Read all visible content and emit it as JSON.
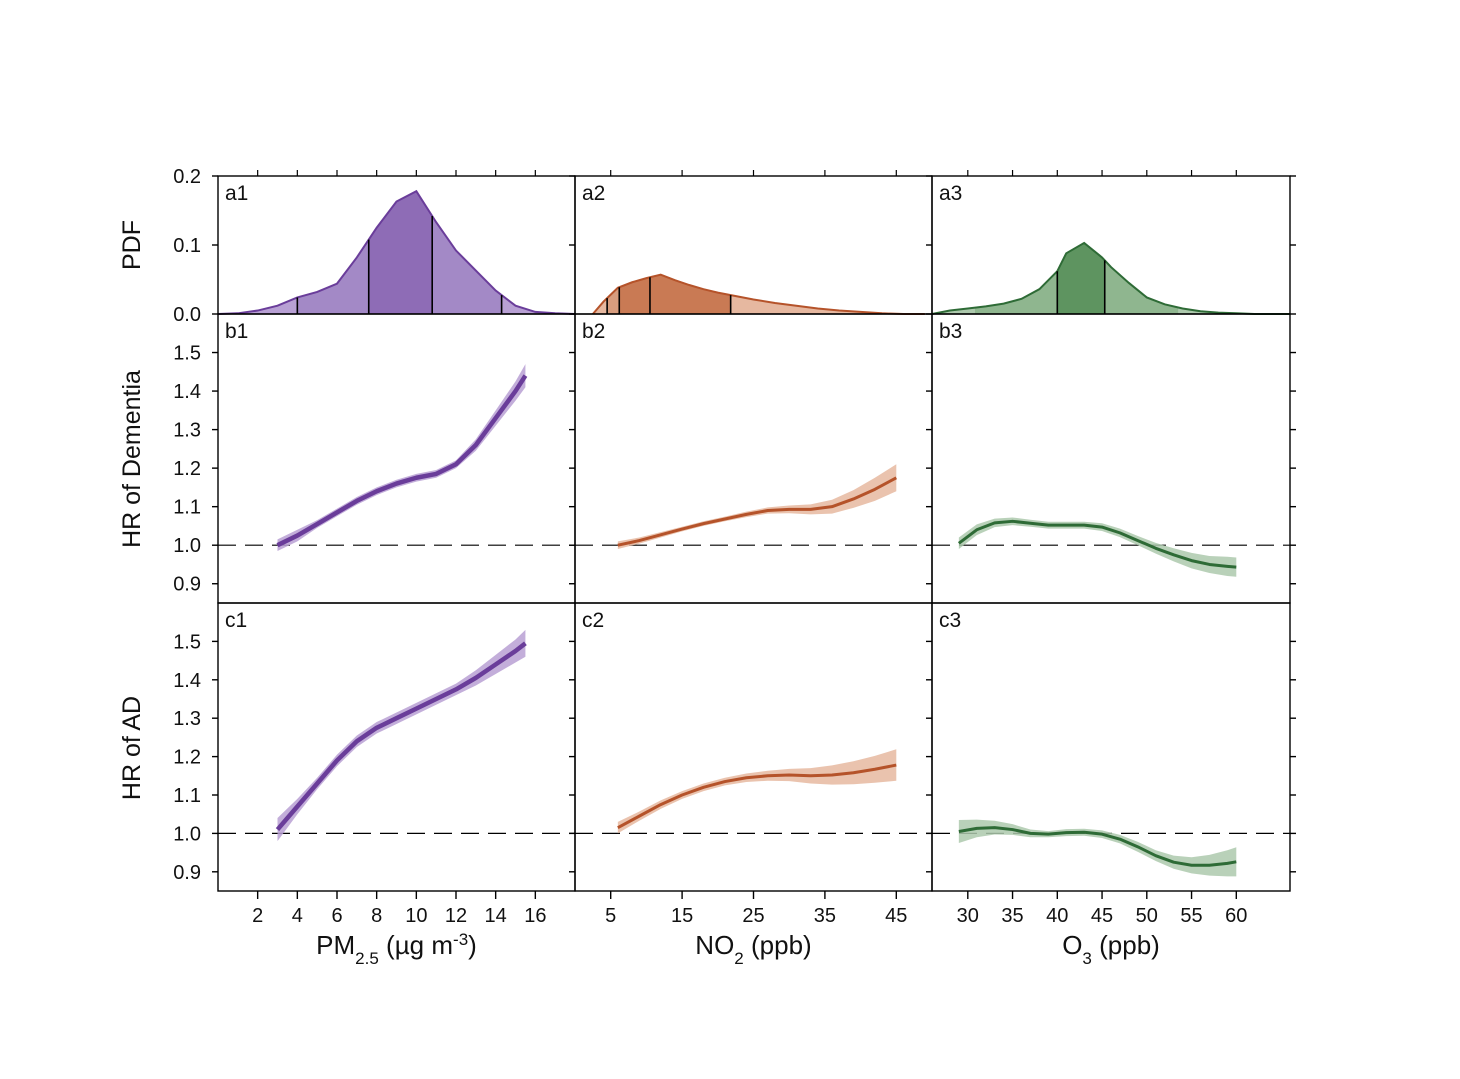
{
  "chart_data": {
    "type": "line",
    "rows": [
      {
        "ylabel": "PDF",
        "yticks": [
          0.0,
          0.1,
          0.2
        ],
        "ylim": [
          0,
          0.2
        ]
      },
      {
        "ylabel": "HR of Dementia",
        "yticks": [
          0.9,
          1.0,
          1.1,
          1.2,
          1.3,
          1.4,
          1.5
        ],
        "ylim": [
          0.85,
          1.6
        ],
        "reference_line": 1.0
      },
      {
        "ylabel": "HR of AD",
        "yticks": [
          0.9,
          1.0,
          1.1,
          1.2,
          1.3,
          1.4,
          1.5
        ],
        "ylim": [
          0.85,
          1.6
        ],
        "reference_line": 1.0
      }
    ],
    "columns": [
      {
        "xlabel_main": "PM",
        "xlabel_sub": "2.5",
        "xlabel_rest": " (µg m",
        "xlabel_sup": "-3",
        "xlabel_end": ")",
        "xlim": [
          0,
          18
        ],
        "xticks": [
          2,
          4,
          6,
          8,
          10,
          12,
          14,
          16
        ],
        "color": "#6a3d9a",
        "light": "#b8a0d4",
        "mid": "#a389c6",
        "dark": "#8e6cb6",
        "pdf_label": "a1",
        "pdf": {
          "x": [
            0,
            1,
            2,
            3,
            4,
            5,
            6,
            7,
            8,
            9,
            10,
            11,
            12,
            13,
            14,
            15,
            16,
            17,
            18
          ],
          "y": [
            0.0,
            0.001,
            0.005,
            0.012,
            0.024,
            0.032,
            0.044,
            0.082,
            0.125,
            0.163,
            0.178,
            0.133,
            0.092,
            0.063,
            0.034,
            0.012,
            0.003,
            0.001,
            0.0
          ]
        },
        "pdf_marks": [
          4.0,
          7.6,
          10.8,
          14.3
        ],
        "pdf_inner": [
          7.6,
          10.8
        ],
        "pdf_outer": [
          4.0,
          14.3
        ],
        "hr1_label": "b1",
        "hr1": {
          "x": [
            3,
            4,
            5,
            6,
            7,
            8,
            9,
            10,
            11,
            12,
            13,
            14,
            15,
            15.5
          ],
          "y": [
            1.0,
            1.025,
            1.055,
            1.085,
            1.115,
            1.14,
            1.16,
            1.175,
            1.185,
            1.21,
            1.26,
            1.33,
            1.4,
            1.44
          ],
          "lo": [
            0.985,
            1.01,
            1.045,
            1.075,
            1.105,
            1.13,
            1.15,
            1.165,
            1.175,
            1.2,
            1.245,
            1.31,
            1.375,
            1.41
          ],
          "hi": [
            1.015,
            1.04,
            1.065,
            1.095,
            1.125,
            1.15,
            1.17,
            1.185,
            1.195,
            1.22,
            1.275,
            1.35,
            1.425,
            1.47
          ]
        },
        "hr2_label": "c1",
        "hr2": {
          "x": [
            3,
            4,
            5,
            6,
            7,
            8,
            9,
            10,
            11,
            12,
            13,
            14,
            15,
            15.5
          ],
          "y": [
            1.01,
            1.07,
            1.13,
            1.19,
            1.24,
            1.275,
            1.3,
            1.325,
            1.35,
            1.375,
            1.405,
            1.44,
            1.475,
            1.495
          ],
          "lo": [
            0.98,
            1.05,
            1.115,
            1.175,
            1.225,
            1.26,
            1.285,
            1.31,
            1.335,
            1.36,
            1.385,
            1.415,
            1.445,
            1.46
          ],
          "hi": [
            1.04,
            1.09,
            1.145,
            1.205,
            1.255,
            1.29,
            1.315,
            1.34,
            1.365,
            1.39,
            1.425,
            1.465,
            1.505,
            1.53
          ]
        }
      },
      {
        "xlabel_main": "NO",
        "xlabel_sub": "2",
        "xlabel_rest": " (ppb)",
        "xlabel_sup": "",
        "xlabel_end": "",
        "xlim": [
          0,
          50
        ],
        "xticks": [
          5,
          15,
          25,
          35,
          45
        ],
        "color": "#b5532a",
        "light": "#e6b8a0",
        "mid": "#d89d7e",
        "dark": "#c97a54",
        "pdf_label": "a2",
        "pdf": {
          "x": [
            2.5,
            4,
            6,
            8,
            10,
            12,
            14,
            16,
            18,
            20,
            22,
            25,
            28,
            31,
            34,
            37,
            40,
            43,
            46,
            49
          ],
          "y": [
            0.0,
            0.018,
            0.038,
            0.046,
            0.052,
            0.057,
            0.049,
            0.042,
            0.036,
            0.031,
            0.027,
            0.021,
            0.016,
            0.012,
            0.008,
            0.005,
            0.003,
            0.001,
            0.0,
            0.0
          ]
        },
        "pdf_marks": [
          4.5,
          6.2,
          10.5,
          21.8
        ],
        "pdf_inner": [
          6.2,
          21.8
        ],
        "pdf_outer": [
          4.5,
          21.8
        ],
        "hr1_label": "b2",
        "hr1": {
          "x": [
            6,
            9,
            12,
            15,
            18,
            21,
            24,
            27,
            30,
            33,
            36,
            39,
            42,
            45
          ],
          "y": [
            1.0,
            1.012,
            1.027,
            1.042,
            1.056,
            1.068,
            1.08,
            1.09,
            1.093,
            1.093,
            1.1,
            1.12,
            1.145,
            1.175
          ],
          "lo": [
            0.99,
            1.004,
            1.02,
            1.036,
            1.05,
            1.062,
            1.073,
            1.082,
            1.083,
            1.08,
            1.082,
            1.097,
            1.115,
            1.14
          ],
          "hi": [
            1.01,
            1.02,
            1.034,
            1.048,
            1.062,
            1.074,
            1.087,
            1.098,
            1.103,
            1.106,
            1.118,
            1.143,
            1.175,
            1.21
          ]
        },
        "hr2_label": "c2",
        "hr2": {
          "x": [
            6,
            9,
            12,
            15,
            18,
            21,
            24,
            27,
            30,
            33,
            36,
            39,
            42,
            45
          ],
          "y": [
            1.015,
            1.045,
            1.075,
            1.1,
            1.12,
            1.135,
            1.145,
            1.15,
            1.152,
            1.15,
            1.152,
            1.158,
            1.167,
            1.178
          ],
          "lo": [
            1.0,
            1.033,
            1.064,
            1.09,
            1.11,
            1.125,
            1.134,
            1.137,
            1.136,
            1.13,
            1.127,
            1.128,
            1.132,
            1.137
          ],
          "hi": [
            1.03,
            1.057,
            1.086,
            1.11,
            1.13,
            1.145,
            1.156,
            1.163,
            1.168,
            1.17,
            1.177,
            1.188,
            1.202,
            1.219
          ]
        }
      },
      {
        "xlabel_main": "O",
        "xlabel_sub": "3",
        "xlabel_rest": " (ppb)",
        "xlabel_sup": "",
        "xlabel_end": "",
        "xlim": [
          26,
          66
        ],
        "xticks": [
          30,
          35,
          40,
          45,
          50,
          55,
          60
        ],
        "color": "#2e6b36",
        "light": "#adc9ad",
        "mid": "#8fb68f",
        "dark": "#5e9460",
        "pdf_label": "a3",
        "pdf": {
          "x": [
            26,
            28,
            30,
            32,
            34,
            36,
            38,
            40,
            41,
            43,
            45,
            46,
            48,
            50,
            52,
            54,
            56,
            58,
            60,
            62,
            64,
            66
          ],
          "y": [
            0.0,
            0.005,
            0.008,
            0.011,
            0.015,
            0.022,
            0.036,
            0.062,
            0.088,
            0.103,
            0.082,
            0.068,
            0.045,
            0.024,
            0.014,
            0.008,
            0.004,
            0.002,
            0.001,
            0.0,
            0.0,
            0.0
          ]
        },
        "pdf_marks": [
          40.0,
          45.3
        ],
        "pdf_inner": [
          40.0,
          45.3
        ],
        "pdf_outer": [
          30.8,
          53.5
        ],
        "hr1_label": "b3",
        "hr1": {
          "x": [
            29,
            31,
            33,
            35,
            37,
            39,
            41,
            43,
            45,
            47,
            49,
            51,
            53,
            55,
            57,
            59,
            60
          ],
          "y": [
            1.005,
            1.04,
            1.058,
            1.062,
            1.057,
            1.052,
            1.052,
            1.052,
            1.047,
            1.032,
            1.012,
            0.992,
            0.975,
            0.96,
            0.95,
            0.945,
            0.943
          ],
          "lo": [
            0.99,
            1.026,
            1.047,
            1.052,
            1.048,
            1.043,
            1.043,
            1.043,
            1.037,
            1.021,
            1.0,
            0.978,
            0.958,
            0.94,
            0.928,
            0.92,
            0.918
          ],
          "hi": [
            1.02,
            1.054,
            1.069,
            1.072,
            1.066,
            1.061,
            1.061,
            1.061,
            1.057,
            1.043,
            1.024,
            1.006,
            0.992,
            0.98,
            0.972,
            0.97,
            0.968
          ]
        },
        "hr2_label": "c3",
        "hr2": {
          "x": [
            29,
            31,
            33,
            35,
            37,
            39,
            41,
            43,
            45,
            47,
            49,
            51,
            53,
            55,
            57,
            59,
            60
          ],
          "y": [
            1.005,
            1.013,
            1.015,
            1.01,
            1.0,
            0.998,
            1.002,
            1.003,
            0.998,
            0.985,
            0.965,
            0.942,
            0.925,
            0.917,
            0.917,
            0.922,
            0.926
          ],
          "lo": [
            0.975,
            0.99,
            0.997,
            0.996,
            0.99,
            0.99,
            0.993,
            0.994,
            0.988,
            0.974,
            0.952,
            0.928,
            0.908,
            0.896,
            0.89,
            0.888,
            0.888
          ],
          "hi": [
            1.035,
            1.036,
            1.033,
            1.024,
            1.01,
            1.006,
            1.011,
            1.012,
            1.008,
            0.996,
            0.978,
            0.956,
            0.942,
            0.938,
            0.944,
            0.956,
            0.964
          ]
        }
      }
    ]
  }
}
